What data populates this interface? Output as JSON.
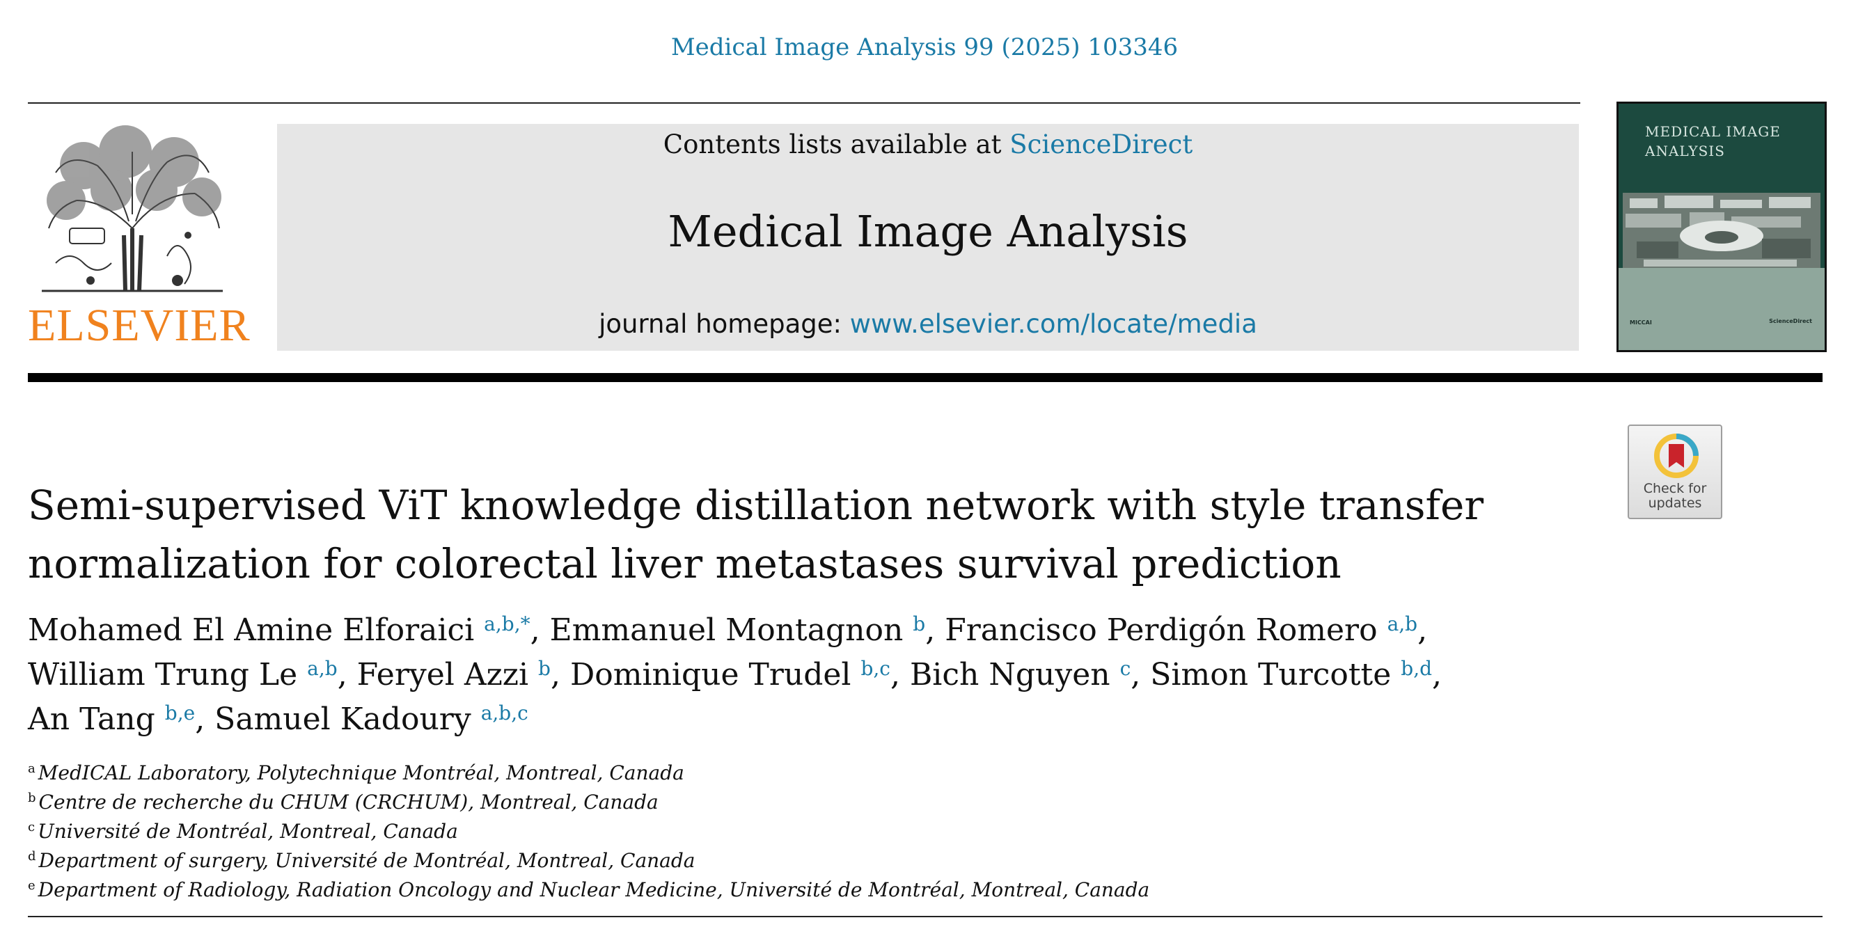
{
  "header": {
    "citation": "Medical Image Analysis 99 (2025) 103346"
  },
  "publisher": {
    "logo_text": "ELSEVIER",
    "logo_color": "#f0821e"
  },
  "banner": {
    "contents_prefix": "Contents lists available at ",
    "contents_link": "ScienceDirect",
    "journal_title": "Medical Image Analysis",
    "homepage_prefix": "journal homepage: ",
    "homepage_link": "www.elsevier.com/locate/media",
    "link_color": "#1a7aa6"
  },
  "cover": {
    "title": "MEDICAL IMAGE ANALYSIS",
    "left_logo": "MICCAI",
    "right_logo": "ScienceDirect"
  },
  "check_updates": {
    "label": "Check for updates",
    "icon": "bookmark-ring-icon"
  },
  "article": {
    "title_line1": "Semi-supervised ViT knowledge distillation network with style transfer",
    "title_line2": "normalization for colorectal liver metastases survival prediction",
    "authors": [
      {
        "name": "Mohamed El Amine Elforaici",
        "aff": "a,b,*",
        "sep": ", "
      },
      {
        "name": "Emmanuel Montagnon",
        "aff": "b",
        "sep": ", "
      },
      {
        "name": "Francisco Perdigón Romero",
        "aff": "a,b",
        "sep": ","
      },
      {
        "name": "William Trung Le",
        "aff": "a,b",
        "sep": ", "
      },
      {
        "name": "Feryel Azzi",
        "aff": "b",
        "sep": ", "
      },
      {
        "name": "Dominique Trudel",
        "aff": "b,c",
        "sep": ", "
      },
      {
        "name": "Bich Nguyen",
        "aff": "c",
        "sep": ", "
      },
      {
        "name": "Simon Turcotte",
        "aff": "b,d",
        "sep": ","
      },
      {
        "name": "An Tang",
        "aff": "b,e",
        "sep": ", "
      },
      {
        "name": "Samuel Kadoury",
        "aff": "a,b,c",
        "sep": ""
      }
    ],
    "affiliations": [
      {
        "key": "a",
        "text": "MedICAL Laboratory, Polytechnique Montréal, Montreal, Canada"
      },
      {
        "key": "b",
        "text": "Centre de recherche du CHUM (CRCHUM), Montreal, Canada"
      },
      {
        "key": "c",
        "text": "Université de Montréal, Montreal, Canada"
      },
      {
        "key": "d",
        "text": "Department of surgery, Université de Montréal, Montreal, Canada"
      },
      {
        "key": "e",
        "text": "Department of Radiology, Radiation Oncology and Nuclear Medicine, Université de Montréal, Montreal, Canada"
      }
    ]
  }
}
